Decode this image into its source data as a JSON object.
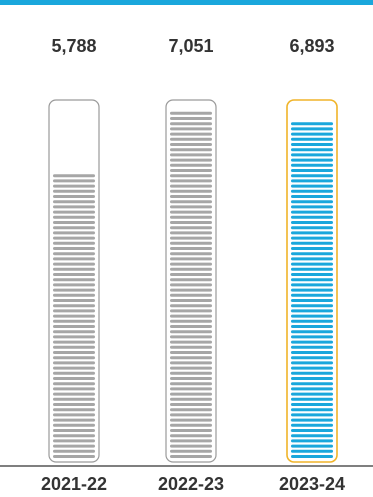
{
  "colors": {
    "accent": "#1aa7dc",
    "highlight_border": "#f0b429",
    "bar_fill": "#a6a6a6",
    "container_border": "#9a9a9a",
    "text": "#333333",
    "baseline": "#555555"
  },
  "chart_data": {
    "type": "bar",
    "title": "",
    "xlabel": "",
    "ylabel": "",
    "categories": [
      "2021-22",
      "2022-23",
      "2023-24"
    ],
    "values": [
      5788,
      7051,
      6893
    ],
    "value_labels": [
      "5,788",
      "7,051",
      "6,893"
    ],
    "highlighted_category": "2023-24",
    "grid": false,
    "legend": "none"
  }
}
